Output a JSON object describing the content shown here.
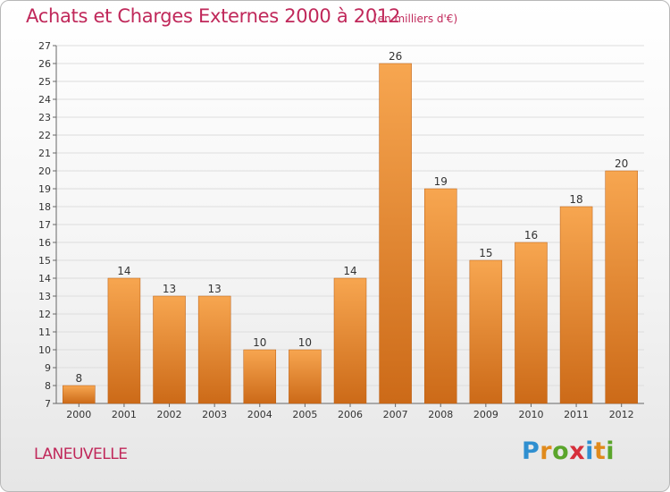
{
  "header": {
    "title": "Achats et Charges Externes 2000 à 2012",
    "subtitle": "(en milliers d'€)"
  },
  "footer": {
    "town": "LANEUVELLE",
    "brand_letters": [
      "P",
      "r",
      "o",
      "x",
      "i",
      "t",
      "i"
    ],
    "brand_colors": [
      "#2f8fd0",
      "#e08a1c",
      "#5aa52b",
      "#d62f3a",
      "#2f8fd0",
      "#e08a1c",
      "#5aa52b"
    ]
  },
  "colors": {
    "bar_light": "#f7a650",
    "bar_dark": "#cc6a18",
    "title": "#c0285a"
  },
  "chart_data": {
    "type": "bar",
    "title": "Achats et Charges Externes 2000 à 2012",
    "subtitle": "(en milliers d'€)",
    "categories": [
      "2000",
      "2001",
      "2002",
      "2003",
      "2004",
      "2005",
      "2006",
      "2007",
      "2008",
      "2009",
      "2010",
      "2011",
      "2012"
    ],
    "values": [
      8,
      14,
      13,
      13,
      10,
      10,
      14,
      26,
      19,
      15,
      16,
      18,
      20
    ],
    "ylim": [
      7,
      27
    ],
    "yticks": [
      7,
      8,
      9,
      10,
      11,
      12,
      13,
      14,
      15,
      16,
      17,
      18,
      19,
      20,
      21,
      22,
      23,
      24,
      25,
      26,
      27
    ],
    "grid": true,
    "xlabel": "",
    "ylabel": ""
  }
}
